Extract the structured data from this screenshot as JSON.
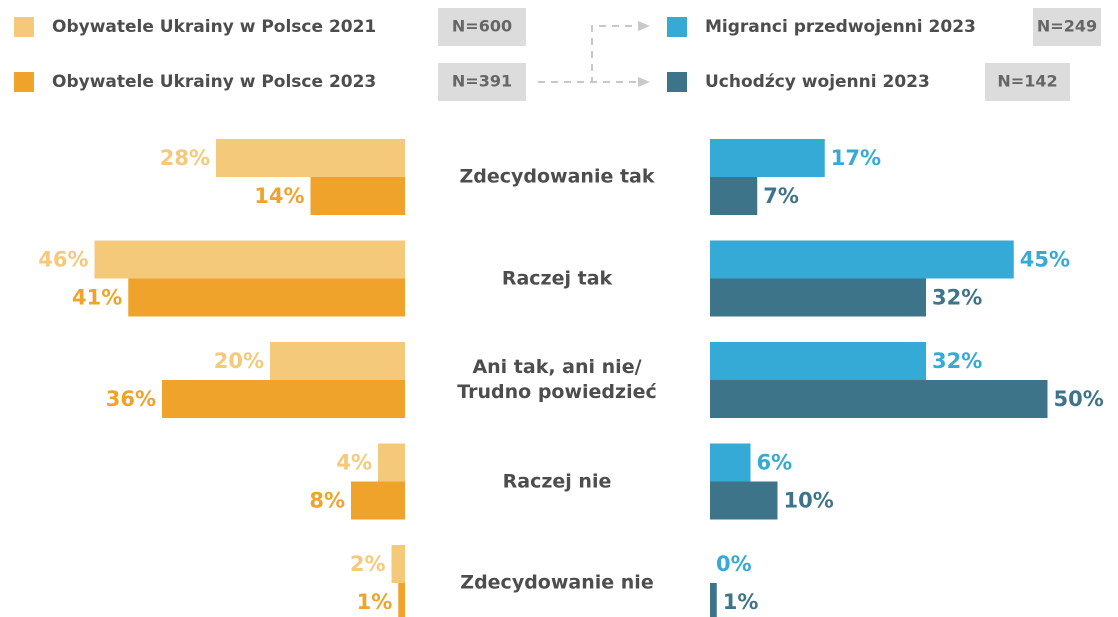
{
  "chart_data": {
    "type": "butterfly_bar",
    "categories": [
      "Zdecydowanie tak",
      "Raczej tak",
      "Ani tak, ani nie/\nTrudno powiedzieć",
      "Raczej nie",
      "Zdecydowanie nie"
    ],
    "series": [
      {
        "name": "Obywatele Ukrainy w Polsce 2021",
        "sample": "N=600",
        "color": "#f5c97a",
        "values": [
          28,
          46,
          20,
          4,
          2
        ],
        "value_labels": [
          "28%",
          "46%",
          "20%",
          "4%",
          "2%"
        ]
      },
      {
        "name": "Obywatele Ukrainy w Polsce 2023",
        "sample": "N=391",
        "color": "#f0a32a",
        "values": [
          14,
          41,
          36,
          8,
          1
        ],
        "value_labels": [
          "14%",
          "41%",
          "36%",
          "8%",
          "1%"
        ]
      },
      {
        "name": "Migranci przedwojenni 2023",
        "sample": "N=249",
        "color": "#35aad6",
        "values": [
          17,
          45,
          32,
          6,
          0
        ],
        "value_labels": [
          "17%",
          "45%",
          "32%",
          "6%",
          "0%"
        ]
      },
      {
        "name": "Uchodźcy wojenni 2023",
        "sample": "N=142",
        "color": "#3d7489",
        "values": [
          7,
          32,
          50,
          10,
          1
        ],
        "value_labels": [
          "7%",
          "32%",
          "50%",
          "10%",
          "1%"
        ]
      }
    ]
  }
}
